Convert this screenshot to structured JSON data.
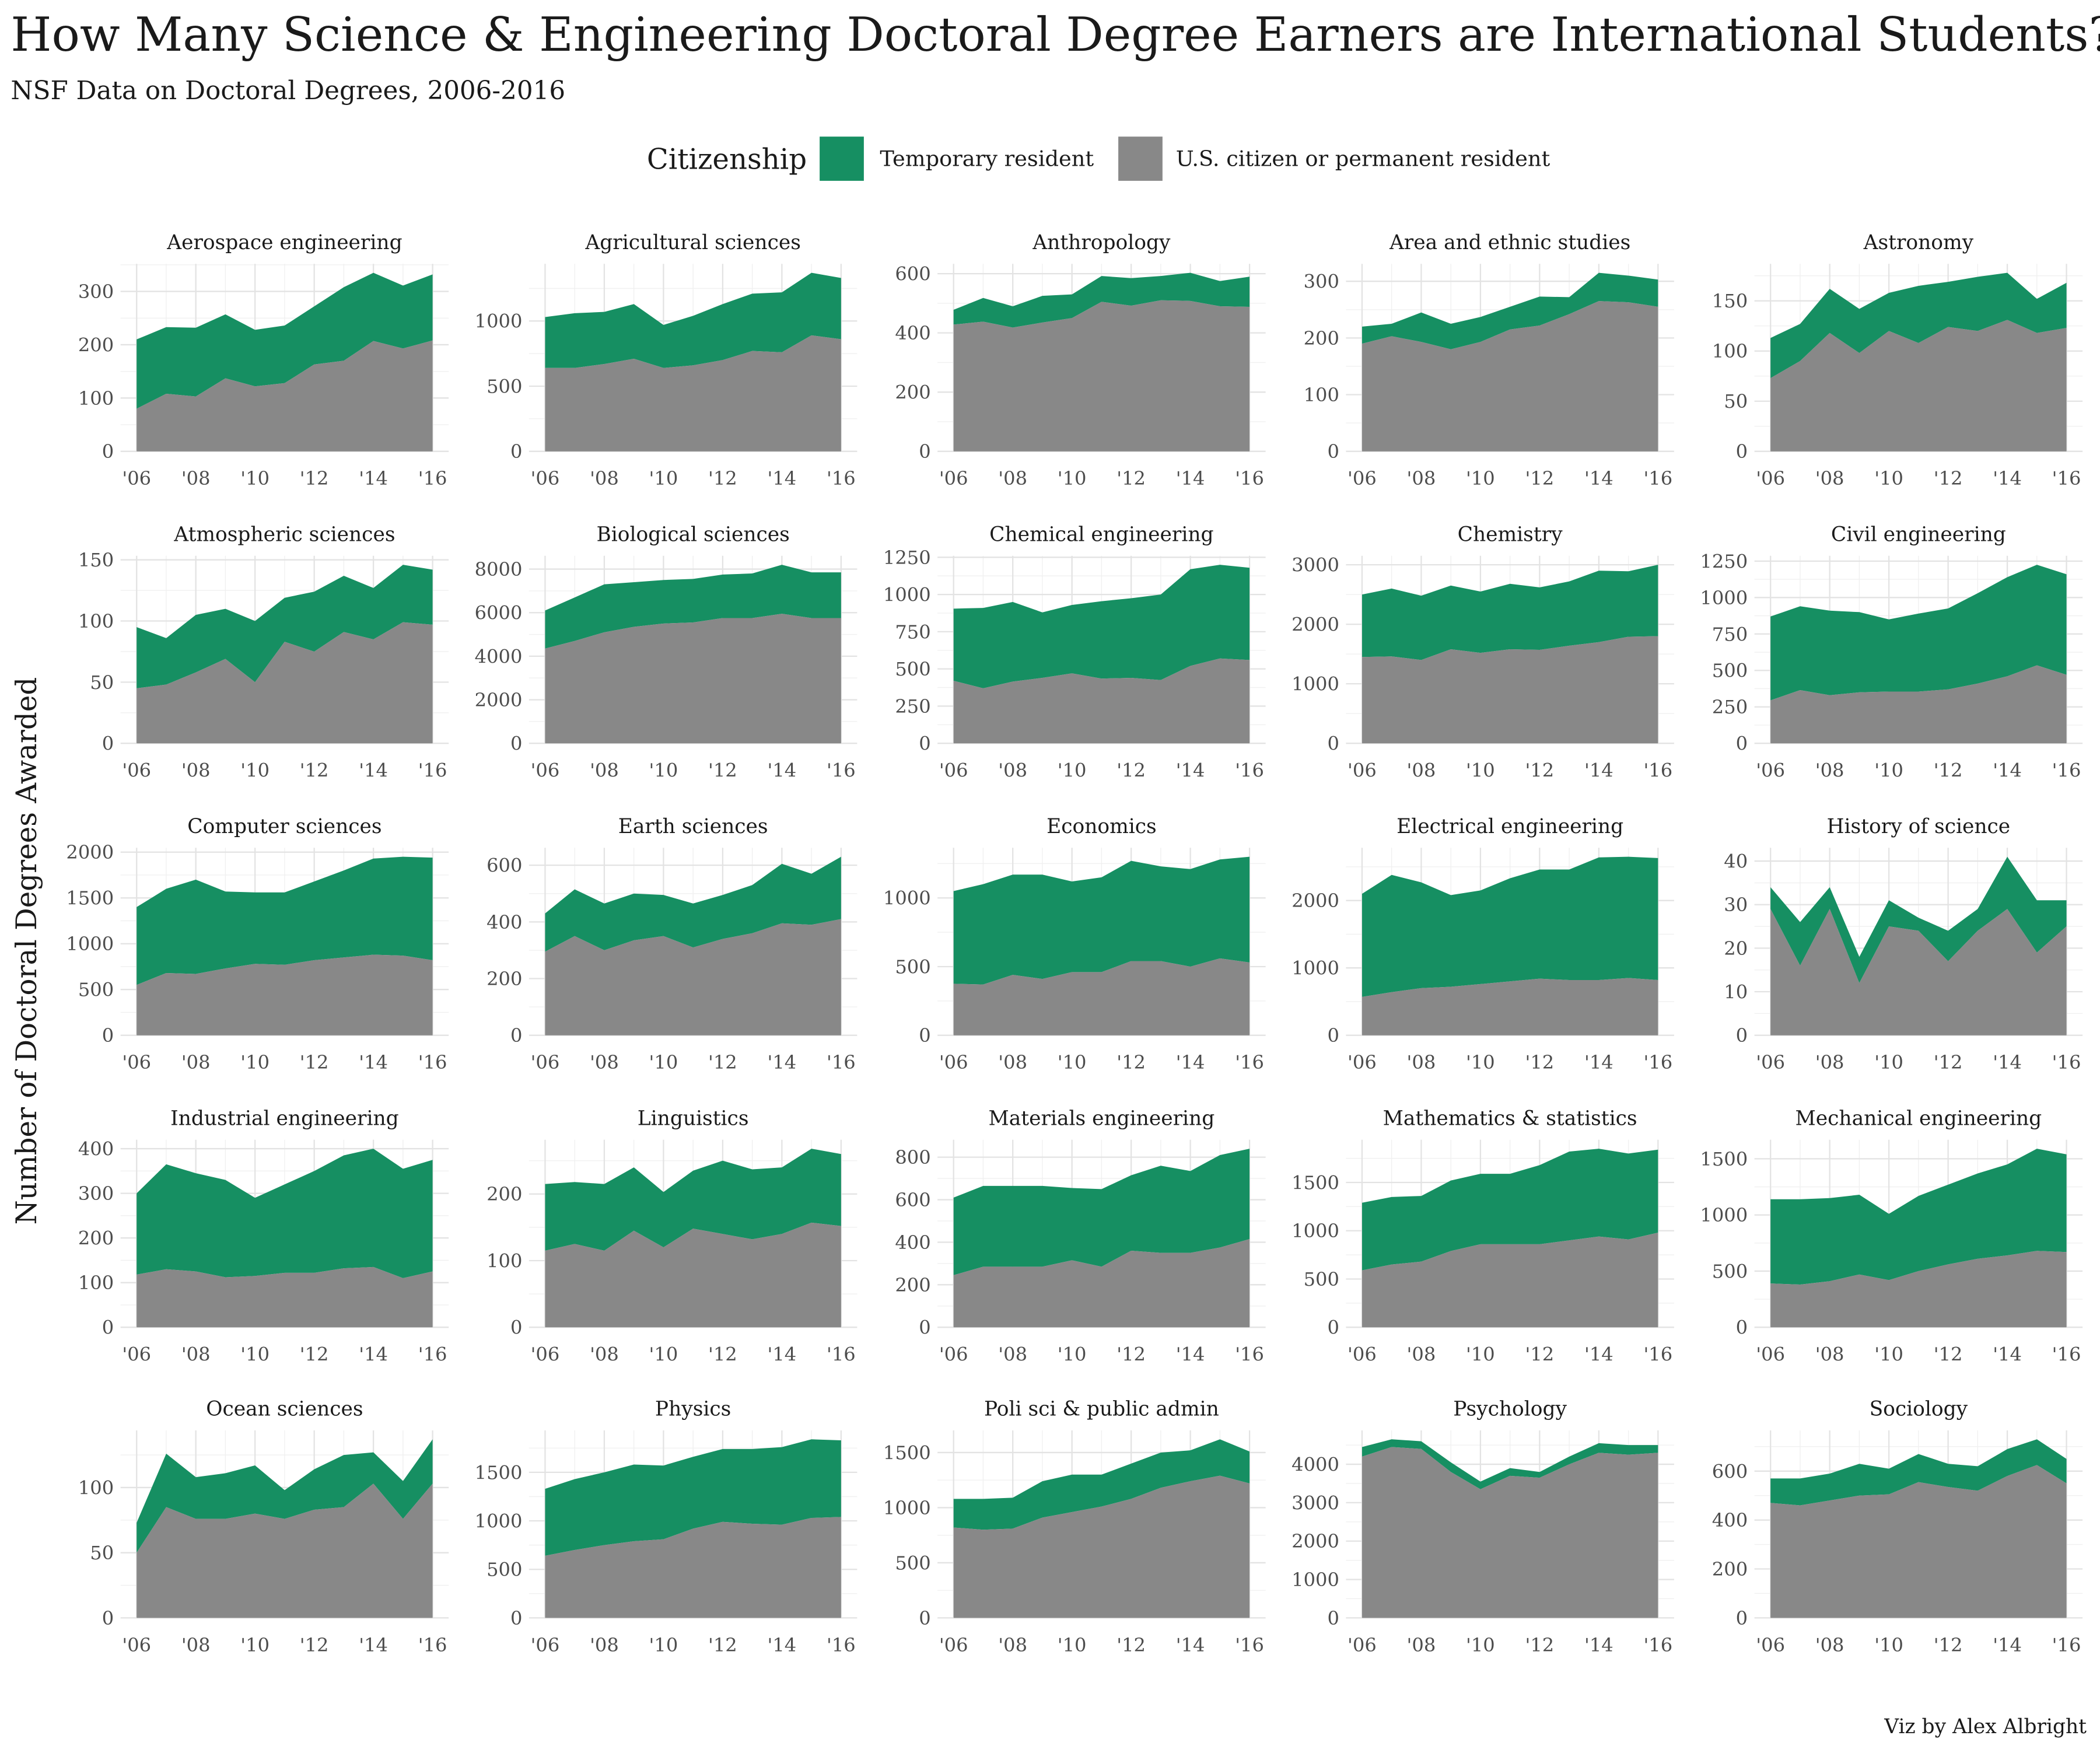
{
  "title": "How Many Science & Engineering Doctoral Degree Earners are International Students?",
  "subtitle": "NSF Data on Doctoral Degrees, 2006-2016",
  "caption": "Viz by Alex Albright",
  "colors": {
    "temporary": "#168f62",
    "us": "#888888"
  },
  "chart_data": {
    "type": "area",
    "stacked": true,
    "ylabel": "Number of Doctoral Degrees Awarded",
    "legend": {
      "title": "Citizenship",
      "position": "top",
      "entries": [
        "Temporary resident",
        "U.S. citizen or permanent resident"
      ]
    },
    "x": [
      2006,
      2007,
      2008,
      2009,
      2010,
      2011,
      2012,
      2013,
      2014,
      2015,
      2016
    ],
    "x_tick_labels": [
      "'06",
      "'08",
      "'10",
      "'12",
      "'14",
      "'16"
    ],
    "x_tick_values": [
      2006,
      2008,
      2010,
      2012,
      2014,
      2016
    ],
    "grid": true,
    "panels": [
      {
        "title": "Aerospace engineering",
        "yticks": [
          0,
          100,
          200,
          300
        ],
        "us": [
          80,
          108,
          103,
          137,
          122,
          128,
          163,
          170,
          207,
          193,
          208
        ],
        "total": [
          210,
          233,
          232,
          257,
          228,
          236,
          272,
          308,
          335,
          311,
          332
        ]
      },
      {
        "title": "Agricultural sciences",
        "yticks": [
          0,
          500,
          1000
        ],
        "us": [
          640,
          640,
          670,
          710,
          640,
          660,
          700,
          770,
          760,
          890,
          860
        ],
        "total": [
          1030,
          1060,
          1070,
          1130,
          970,
          1040,
          1130,
          1210,
          1220,
          1370,
          1330
        ]
      },
      {
        "title": "Anthropology",
        "yticks": [
          0,
          200,
          400,
          600
        ],
        "us": [
          428,
          438,
          418,
          435,
          450,
          505,
          492,
          510,
          508,
          490,
          488
        ],
        "total": [
          478,
          518,
          490,
          525,
          530,
          592,
          585,
          592,
          603,
          575,
          590
        ]
      },
      {
        "title": "Area and ethnic studies",
        "yticks": [
          0,
          100,
          200,
          300
        ],
        "us": [
          190,
          203,
          193,
          180,
          193,
          215,
          222,
          242,
          265,
          263,
          255
        ],
        "total": [
          220,
          225,
          245,
          225,
          237,
          255,
          273,
          272,
          315,
          310,
          303
        ]
      },
      {
        "title": "Astronomy",
        "yticks": [
          0,
          50,
          100,
          150
        ],
        "us": [
          73,
          90,
          118,
          98,
          120,
          108,
          124,
          120,
          131,
          118,
          123
        ],
        "total": [
          113,
          127,
          162,
          142,
          158,
          165,
          169,
          174,
          178,
          152,
          168
        ]
      },
      {
        "title": "Atmospheric sciences",
        "yticks": [
          0,
          50,
          100,
          150
        ],
        "us": [
          45,
          48,
          58,
          69,
          50,
          83,
          75,
          91,
          85,
          99,
          97
        ],
        "total": [
          95,
          86,
          105,
          110,
          100,
          119,
          124,
          137,
          127,
          146,
          142
        ]
      },
      {
        "title": "Biological sciences",
        "yticks": [
          0,
          2000,
          4000,
          6000,
          8000
        ],
        "us": [
          4350,
          4700,
          5100,
          5350,
          5500,
          5550,
          5750,
          5750,
          5950,
          5750,
          5750
        ],
        "total": [
          6100,
          6700,
          7300,
          7400,
          7500,
          7550,
          7750,
          7800,
          8200,
          7850,
          7850
        ]
      },
      {
        "title": "Chemical engineering",
        "yticks": [
          0,
          250,
          500,
          750,
          1000,
          1250
        ],
        "us": [
          420,
          370,
          415,
          440,
          470,
          435,
          440,
          425,
          520,
          570,
          560
        ],
        "total": [
          905,
          910,
          950,
          880,
          930,
          955,
          975,
          1000,
          1170,
          1200,
          1180
        ]
      },
      {
        "title": "Chemistry",
        "yticks": [
          0,
          1000,
          2000,
          3000
        ],
        "us": [
          1450,
          1460,
          1400,
          1580,
          1520,
          1580,
          1570,
          1640,
          1700,
          1790,
          1800
        ],
        "total": [
          2500,
          2600,
          2480,
          2650,
          2550,
          2680,
          2620,
          2720,
          2900,
          2890,
          3000
        ]
      },
      {
        "title": "Civil engineering",
        "yticks": [
          0,
          250,
          500,
          750,
          1000,
          1250
        ],
        "us": [
          295,
          365,
          330,
          350,
          355,
          355,
          370,
          410,
          460,
          535,
          470
        ],
        "total": [
          870,
          940,
          910,
          900,
          850,
          890,
          925,
          1030,
          1140,
          1225,
          1160
        ]
      },
      {
        "title": "Computer sciences",
        "yticks": [
          0,
          500,
          1000,
          1500,
          2000
        ],
        "us": [
          550,
          680,
          670,
          730,
          780,
          770,
          820,
          850,
          880,
          870,
          820
        ],
        "total": [
          1400,
          1600,
          1700,
          1570,
          1560,
          1560,
          1680,
          1800,
          1930,
          1950,
          1940
        ]
      },
      {
        "title": "Earth sciences",
        "yticks": [
          0,
          200,
          400,
          600
        ],
        "us": [
          295,
          350,
          300,
          335,
          350,
          310,
          340,
          360,
          395,
          390,
          410
        ],
        "total": [
          430,
          515,
          465,
          500,
          495,
          465,
          495,
          530,
          605,
          570,
          630
        ]
      },
      {
        "title": "Economics",
        "yticks": [
          0,
          500,
          1000
        ],
        "us": [
          375,
          370,
          440,
          410,
          460,
          460,
          540,
          540,
          500,
          560,
          530
        ],
        "total": [
          1050,
          1100,
          1170,
          1170,
          1120,
          1150,
          1270,
          1230,
          1210,
          1280,
          1300
        ]
      },
      {
        "title": "Electrical engineering",
        "yticks": [
          0,
          1000,
          2000
        ],
        "us": [
          570,
          640,
          700,
          720,
          760,
          800,
          840,
          820,
          820,
          850,
          820
        ],
        "total": [
          2100,
          2380,
          2270,
          2080,
          2150,
          2330,
          2460,
          2460,
          2640,
          2650,
          2630
        ]
      },
      {
        "title": "History of science",
        "yticks": [
          0,
          10,
          20,
          30,
          40
        ],
        "us": [
          29,
          16,
          29,
          12,
          25,
          24,
          17,
          24,
          29,
          19,
          25
        ],
        "total": [
          34,
          26,
          34,
          18,
          31,
          27,
          24,
          29,
          41,
          31,
          31
        ]
      },
      {
        "title": "Industrial engineering",
        "yticks": [
          0,
          100,
          200,
          300,
          400
        ],
        "us": [
          118,
          130,
          125,
          112,
          115,
          122,
          122,
          132,
          135,
          110,
          125
        ],
        "total": [
          300,
          365,
          345,
          330,
          290,
          320,
          350,
          385,
          400,
          355,
          375
        ]
      },
      {
        "title": "Linguistics",
        "yticks": [
          0,
          100,
          200
        ],
        "us": [
          115,
          125,
          115,
          145,
          120,
          148,
          140,
          132,
          140,
          157,
          152
        ],
        "total": [
          215,
          218,
          215,
          240,
          203,
          235,
          250,
          237,
          240,
          268,
          260
        ]
      },
      {
        "title": "Materials engineering",
        "yticks": [
          0,
          200,
          400,
          600,
          800
        ],
        "us": [
          245,
          285,
          285,
          285,
          315,
          285,
          360,
          350,
          350,
          375,
          415
        ],
        "total": [
          610,
          665,
          665,
          665,
          655,
          650,
          715,
          760,
          735,
          810,
          840
        ]
      },
      {
        "title": "Mathematics & statistics",
        "yticks": [
          0,
          500,
          1000,
          1500
        ],
        "us": [
          590,
          650,
          680,
          790,
          860,
          860,
          860,
          900,
          940,
          910,
          980
        ],
        "total": [
          1290,
          1350,
          1360,
          1520,
          1590,
          1590,
          1680,
          1820,
          1850,
          1800,
          1840
        ]
      },
      {
        "title": "Mechanical engineering",
        "yticks": [
          0,
          500,
          1000,
          1500
        ],
        "us": [
          390,
          380,
          410,
          470,
          420,
          500,
          560,
          610,
          640,
          680,
          670
        ],
        "total": [
          1140,
          1140,
          1150,
          1180,
          1010,
          1170,
          1270,
          1370,
          1450,
          1590,
          1540
        ]
      },
      {
        "title": "Ocean sciences",
        "yticks": [
          0,
          50,
          100
        ],
        "us": [
          50,
          85,
          76,
          76,
          80,
          76,
          83,
          85,
          103,
          76,
          103
        ],
        "total": [
          73,
          126,
          108,
          111,
          117,
          98,
          114,
          125,
          127,
          105,
          137
        ]
      },
      {
        "title": "Physics",
        "yticks": [
          0,
          500,
          1000,
          1500
        ],
        "us": [
          640,
          700,
          750,
          790,
          810,
          920,
          990,
          970,
          960,
          1030,
          1040
        ],
        "total": [
          1330,
          1430,
          1500,
          1580,
          1570,
          1660,
          1740,
          1740,
          1760,
          1840,
          1830
        ]
      },
      {
        "title": "Poli sci & public admin",
        "yticks": [
          0,
          500,
          1000,
          1500
        ],
        "us": [
          820,
          800,
          810,
          910,
          960,
          1010,
          1080,
          1180,
          1240,
          1290,
          1220
        ],
        "total": [
          1080,
          1080,
          1090,
          1240,
          1300,
          1300,
          1400,
          1500,
          1520,
          1620,
          1510
        ]
      },
      {
        "title": "Psychology",
        "yticks": [
          0,
          1000,
          2000,
          3000,
          4000
        ],
        "us": [
          4200,
          4450,
          4400,
          3800,
          3350,
          3700,
          3650,
          4000,
          4300,
          4250,
          4300
        ],
        "total": [
          4450,
          4650,
          4600,
          4050,
          3550,
          3900,
          3800,
          4200,
          4550,
          4500,
          4500
        ]
      },
      {
        "title": "Sociology",
        "yticks": [
          0,
          200,
          400,
          600
        ],
        "us": [
          470,
          460,
          480,
          500,
          505,
          555,
          535,
          520,
          580,
          625,
          550
        ],
        "total": [
          570,
          570,
          590,
          630,
          610,
          670,
          630,
          620,
          690,
          730,
          650
        ]
      }
    ]
  }
}
